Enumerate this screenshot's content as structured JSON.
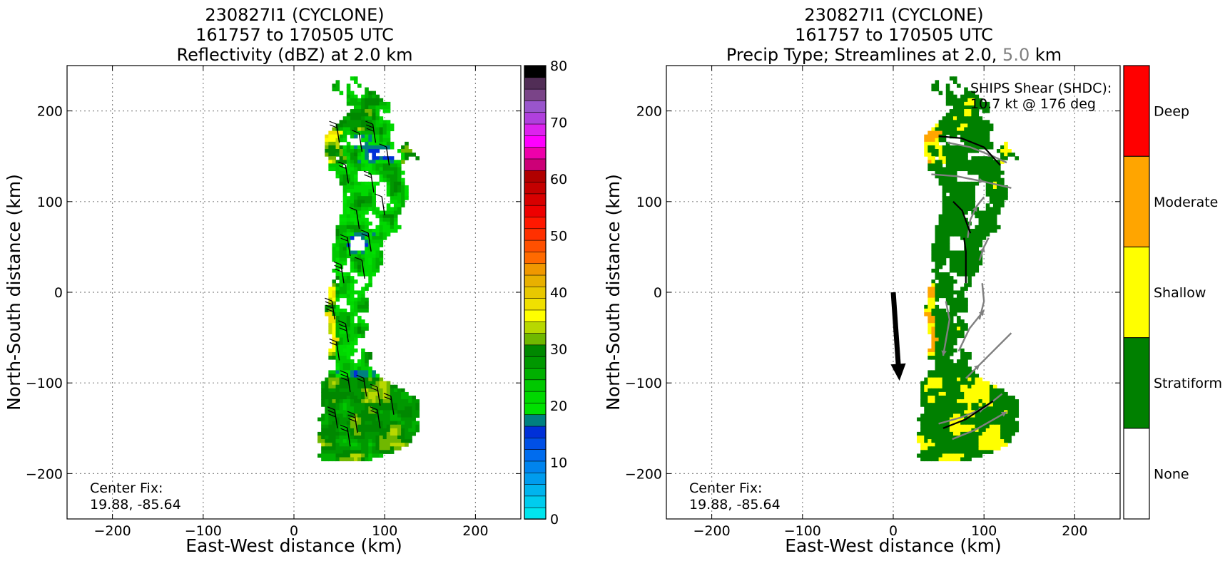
{
  "chart_data": [
    {
      "type": "heatmap",
      "title": [
        "230827I1 (CYCLONE)",
        "161757 to 170505 UTC",
        "Reflectivity (dBZ) at 2.0 km"
      ],
      "xlabel": "East-West distance (km)",
      "ylabel": "North-South distance (km)",
      "xlim": [
        -250,
        250
      ],
      "ylim": [
        -250,
        250
      ],
      "xticks": [
        -200,
        -100,
        0,
        100,
        200
      ],
      "yticks": [
        -200,
        -100,
        0,
        100,
        200
      ],
      "xtick_labels": [
        "−200",
        "−100",
        "0",
        "100",
        "200"
      ],
      "ytick_labels": [
        "−200",
        "−100",
        "0",
        "100",
        "200"
      ],
      "grid": true,
      "annotation": [
        "Center Fix:",
        "19.88, -85.64"
      ],
      "colorbar": {
        "range": [
          0,
          80
        ],
        "tick_values": [
          0,
          10,
          20,
          30,
          40,
          50,
          60,
          70,
          80
        ],
        "tick_labels": [
          "0",
          "10",
          "20",
          "30",
          "40",
          "50",
          "60",
          "70",
          "80"
        ],
        "colors": [
          "#00e5ee",
          "#00ccee",
          "#00b4ee",
          "#009cee",
          "#0084ee",
          "#006cee",
          "#0050e6",
          "#0030d8",
          "#008080",
          "#00e000",
          "#00d800",
          "#00c800",
          "#00b000",
          "#009800",
          "#008800",
          "#70b800",
          "#b8d800",
          "#ffff00",
          "#f0e000",
          "#e8c800",
          "#e8b000",
          "#f09800",
          "#ff6a00",
          "#ff5000",
          "#ff3000",
          "#ff1800",
          "#ee0000",
          "#d80000",
          "#c40000",
          "#b00000",
          "#cc0077",
          "#ee00aa",
          "#ff00ff",
          "#dd22ee",
          "#b040dd",
          "#9955cc",
          "#7a4488",
          "#512d56",
          "#000000"
        ]
      }
    },
    {
      "type": "heatmap",
      "title": [
        "230827I1 (CYCLONE)",
        "161757 to 170505 UTC"
      ],
      "title_line3_parts": [
        "Precip Type; Streamlines at 2.0, ",
        "5.0",
        " km"
      ],
      "xlabel": "East-West distance (km)",
      "ylabel": "North-South distance (km)",
      "xlim": [
        -250,
        250
      ],
      "ylim": [
        -250,
        250
      ],
      "xticks": [
        -200,
        -100,
        0,
        100,
        200
      ],
      "yticks": [
        -200,
        -100,
        0,
        100,
        200
      ],
      "xtick_labels": [
        "−200",
        "−100",
        "0",
        "100",
        "200"
      ],
      "ytick_labels": [
        "−200",
        "−100",
        "0",
        "100",
        "200"
      ],
      "grid": true,
      "annotation": [
        "Center Fix:",
        "19.88, -85.64"
      ],
      "shear_text": [
        "SHIPS Shear (SHDC):",
        "10.7 kt @ 176 deg"
      ],
      "shear": {
        "speed_kt": 10.7,
        "direction_deg": 176
      },
      "colorbar": {
        "categories": [
          "None",
          "Stratiform",
          "Shallow",
          "Moderate",
          "Deep"
        ],
        "colors": [
          "#ffffff",
          "#008000",
          "#ffff00",
          "#ffa500",
          "#ff0000"
        ]
      }
    }
  ]
}
